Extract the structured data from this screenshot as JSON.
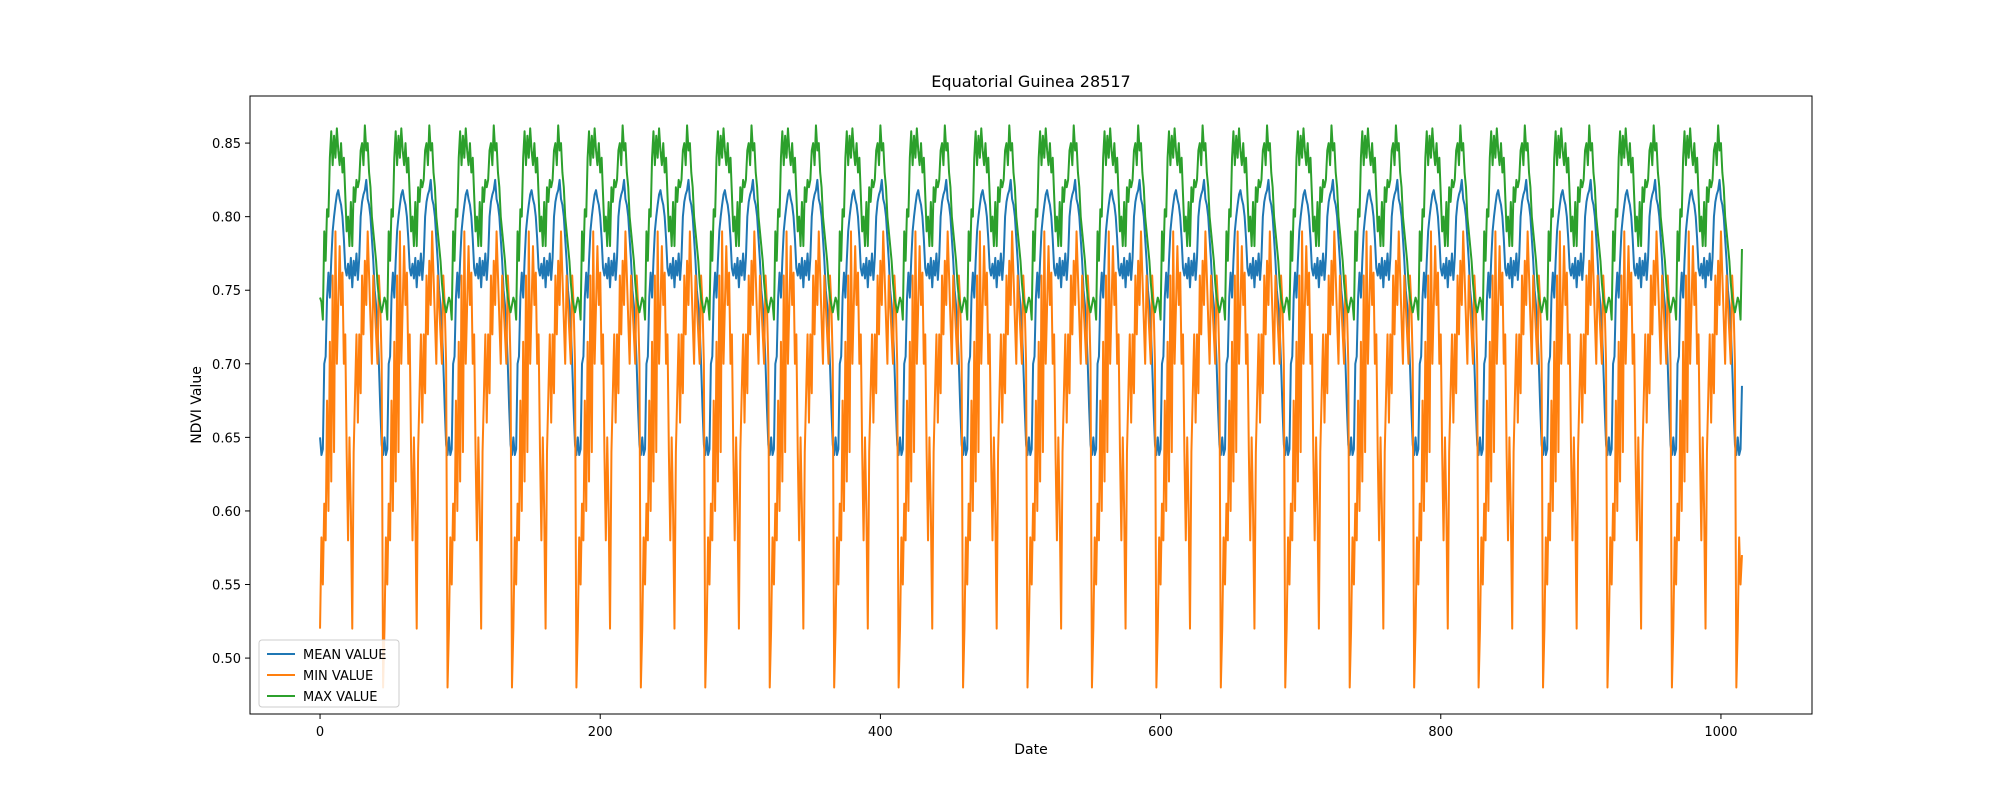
{
  "chart_data": {
    "type": "line",
    "title": "Equatorial Guinea 28517",
    "xlabel": "Date",
    "ylabel": "NDVI Value",
    "xlim": [
      -50,
      1065
    ],
    "ylim": [
      0.462,
      0.882
    ],
    "xticks": [
      0,
      200,
      400,
      600,
      800,
      1000
    ],
    "yticks": [
      0.5,
      0.55,
      0.6,
      0.65,
      0.7,
      0.75,
      0.8,
      0.85
    ],
    "grid": false,
    "legend_position": "lower-left",
    "period": 46,
    "n_points": 1016,
    "series": [
      {
        "name": "MEAN VALUE",
        "color": "#1f77b4",
        "cycle": [
          0.65,
          0.638,
          0.642,
          0.7,
          0.705,
          0.745,
          0.762,
          0.745,
          0.77,
          0.79,
          0.8,
          0.808,
          0.815,
          0.818,
          0.812,
          0.808,
          0.8,
          0.785,
          0.765,
          0.76,
          0.768,
          0.758,
          0.772,
          0.752,
          0.77,
          0.76,
          0.775,
          0.757,
          0.772,
          0.8,
          0.81,
          0.815,
          0.818,
          0.825,
          0.812,
          0.808,
          0.8,
          0.785,
          0.77,
          0.75,
          0.74,
          0.725,
          0.7,
          0.67,
          0.645,
          0.638
        ],
        "end_value": 0.685
      },
      {
        "name": "MIN VALUE",
        "color": "#ff7f0e",
        "cycle": [
          0.52,
          0.582,
          0.55,
          0.605,
          0.58,
          0.675,
          0.6,
          0.715,
          0.62,
          0.76,
          0.64,
          0.79,
          0.7,
          0.74,
          0.78,
          0.74,
          0.762,
          0.7,
          0.72,
          0.64,
          0.58,
          0.65,
          0.6,
          0.52,
          0.64,
          0.68,
          0.72,
          0.66,
          0.72,
          0.68,
          0.76,
          0.72,
          0.77,
          0.74,
          0.79,
          0.76,
          0.73,
          0.7,
          0.76,
          0.74,
          0.72,
          0.7,
          0.76,
          0.74,
          0.7,
          0.48
        ],
        "end_value": 0.57
      },
      {
        "name": "MAX VALUE",
        "color": "#2ca02c",
        "cycle": [
          0.745,
          0.742,
          0.73,
          0.79,
          0.77,
          0.805,
          0.8,
          0.84,
          0.858,
          0.835,
          0.855,
          0.84,
          0.86,
          0.845,
          0.835,
          0.85,
          0.83,
          0.84,
          0.815,
          0.79,
          0.8,
          0.78,
          0.81,
          0.78,
          0.82,
          0.81,
          0.825,
          0.82,
          0.825,
          0.845,
          0.85,
          0.835,
          0.862,
          0.845,
          0.85,
          0.83,
          0.82,
          0.8,
          0.79,
          0.78,
          0.77,
          0.755,
          0.745,
          0.74,
          0.735,
          0.74
        ],
        "end_value": 0.778
      }
    ]
  }
}
